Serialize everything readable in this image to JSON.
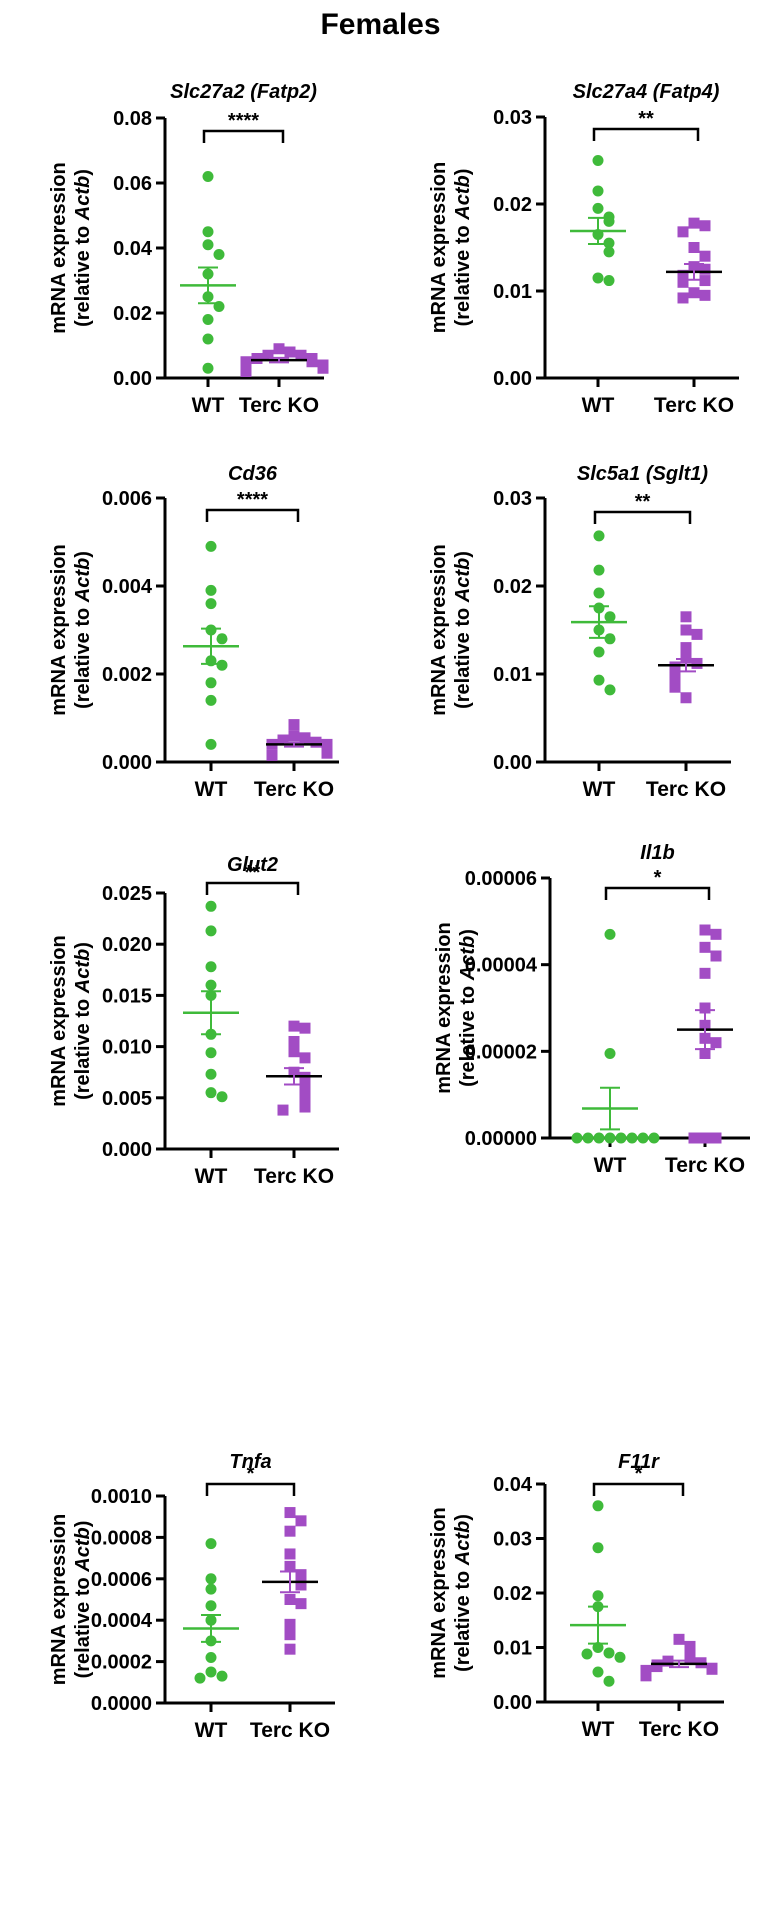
{
  "figure_title": "Females",
  "colors": {
    "wt": "#3fba3a",
    "ko": "#a24cc4",
    "axis": "#000000"
  },
  "axis_label": {
    "line1": "mRNA expression",
    "line2_prefix": "(relative to ",
    "line2_gene": "Actb",
    "line2_suffix": ")"
  },
  "chart_data": [
    {
      "type": "scatter",
      "title": "Slc27a2 (Fatp2)",
      "categories": [
        "WT",
        "Terc KO"
      ],
      "ylim": [
        0,
        0.08
      ],
      "yticks": [
        "0.00",
        "0.02",
        "0.04",
        "0.06",
        "0.08"
      ],
      "significance": "****",
      "series": [
        {
          "name": "WT",
          "marker": "circle",
          "mean": 0.0285,
          "sem": 0.0055,
          "values": [
            0.062,
            0.045,
            0.041,
            0.038,
            0.032,
            0.025,
            0.022,
            0.018,
            0.012,
            0.003
          ]
        },
        {
          "name": "Terc KO",
          "marker": "square",
          "mean": 0.0055,
          "sem": 0.0007,
          "values": [
            0.009,
            0.008,
            0.007,
            0.007,
            0.006,
            0.006,
            0.005,
            0.005,
            0.004,
            0.004,
            0.003,
            0.003,
            0.002
          ]
        }
      ]
    },
    {
      "type": "scatter",
      "title": "Slc27a4 (Fatp4)",
      "categories": [
        "WT",
        "Terc KO"
      ],
      "ylim": [
        0,
        0.03
      ],
      "yticks": [
        "0.00",
        "0.01",
        "0.02",
        "0.03"
      ],
      "significance": "**",
      "series": [
        {
          "name": "WT",
          "marker": "circle",
          "mean": 0.0169,
          "sem": 0.0015,
          "values": [
            0.025,
            0.0215,
            0.0195,
            0.0185,
            0.018,
            0.0165,
            0.0155,
            0.0145,
            0.0115,
            0.0112
          ]
        },
        {
          "name": "Terc KO",
          "marker": "square",
          "mean": 0.0122,
          "sem": 0.0009,
          "values": [
            0.0178,
            0.0175,
            0.0168,
            0.015,
            0.014,
            0.0128,
            0.0125,
            0.0118,
            0.0112,
            0.011,
            0.0098,
            0.0095,
            0.0092
          ]
        }
      ]
    },
    {
      "type": "scatter",
      "title": "Cd36",
      "categories": [
        "WT",
        "Terc KO"
      ],
      "ylim": [
        0,
        0.006
      ],
      "yticks": [
        "0.000",
        "0.002",
        "0.004",
        "0.006"
      ],
      "significance": "****",
      "series": [
        {
          "name": "WT",
          "marker": "circle",
          "mean": 0.00263,
          "sem": 0.0004,
          "values": [
            0.0049,
            0.0039,
            0.0036,
            0.003,
            0.0028,
            0.0023,
            0.0022,
            0.0018,
            0.0014,
            0.0004
          ]
        },
        {
          "name": "Terc KO",
          "marker": "square",
          "mean": 0.0004,
          "sem": 5e-05,
          "values": [
            0.00085,
            0.0006,
            0.00055,
            0.0005,
            0.00045,
            0.0004,
            0.0004,
            0.00035,
            0.0003,
            0.00025,
            0.0002,
            0.00015
          ]
        }
      ]
    },
    {
      "type": "scatter",
      "title": "Slc5a1 (Sglt1)",
      "categories": [
        "WT",
        "Terc KO"
      ],
      "ylim": [
        0,
        0.03
      ],
      "yticks": [
        "0.00",
        "0.01",
        "0.02",
        "0.03"
      ],
      "significance": "**",
      "series": [
        {
          "name": "WT",
          "marker": "circle",
          "mean": 0.0159,
          "sem": 0.0018,
          "values": [
            0.0257,
            0.0218,
            0.0192,
            0.0175,
            0.0165,
            0.015,
            0.014,
            0.0125,
            0.0093,
            0.0082
          ]
        },
        {
          "name": "Terc KO",
          "marker": "square",
          "mean": 0.011,
          "sem": 0.0007,
          "values": [
            0.0165,
            0.015,
            0.0145,
            0.013,
            0.0118,
            0.0112,
            0.0108,
            0.0105,
            0.0098,
            0.0095,
            0.009,
            0.0085,
            0.0073
          ]
        }
      ]
    },
    {
      "type": "scatter",
      "title": "Glut2",
      "categories": [
        "WT",
        "Terc KO"
      ],
      "ylim": [
        0,
        0.025
      ],
      "yticks": [
        "0.000",
        "0.005",
        "0.010",
        "0.015",
        "0.020",
        "0.025"
      ],
      "significance": "**",
      "series": [
        {
          "name": "WT",
          "marker": "circle",
          "mean": 0.0133,
          "sem": 0.0021,
          "values": [
            0.0237,
            0.0213,
            0.0178,
            0.016,
            0.015,
            0.0112,
            0.0094,
            0.0073,
            0.0055,
            0.0051
          ]
        },
        {
          "name": "Terc KO",
          "marker": "square",
          "mean": 0.0071,
          "sem": 0.0008,
          "values": [
            0.012,
            0.0118,
            0.0105,
            0.0095,
            0.0089,
            0.0075,
            0.007,
            0.0063,
            0.0055,
            0.0052,
            0.0045,
            0.0041,
            0.0038
          ]
        }
      ]
    },
    {
      "type": "scatter",
      "title": "Il1b",
      "categories": [
        "WT",
        "Terc KO"
      ],
      "ylim": [
        0,
        6e-05
      ],
      "yticks": [
        "0.00000",
        "0.00002",
        "0.00004",
        "0.00006"
      ],
      "significance": "*",
      "series": [
        {
          "name": "WT",
          "marker": "circle",
          "mean": 6.8e-06,
          "sem": 4.8e-06,
          "values": [
            4.7e-05,
            1.95e-05,
            0,
            0,
            0,
            0,
            0,
            0,
            0,
            0
          ]
        },
        {
          "name": "Terc KO",
          "marker": "square",
          "mean": 2.5e-05,
          "sem": 4.5e-06,
          "values": [
            4.8e-05,
            4.7e-05,
            4.4e-05,
            4.2e-05,
            3.8e-05,
            3e-05,
            2.6e-05,
            2.3e-05,
            2.2e-05,
            1.95e-05,
            0,
            0,
            0
          ]
        }
      ]
    },
    {
      "type": "scatter",
      "title": "Tnfa",
      "categories": [
        "WT",
        "Terc KO"
      ],
      "ylim": [
        0,
        0.001
      ],
      "yticks": [
        "0.0000",
        "0.0002",
        "0.0004",
        "0.0006",
        "0.0008",
        "0.0010"
      ],
      "significance": "*",
      "series": [
        {
          "name": "WT",
          "marker": "circle",
          "mean": 0.00036,
          "sem": 6.5e-05,
          "values": [
            0.00077,
            0.0006,
            0.00055,
            0.00047,
            0.0004,
            0.0003,
            0.00022,
            0.00015,
            0.00013,
            0.00012
          ]
        },
        {
          "name": "Terc KO",
          "marker": "square",
          "mean": 0.000585,
          "sem": 5e-05,
          "values": [
            0.00092,
            0.00088,
            0.00083,
            0.00072,
            0.00066,
            0.00062,
            0.0006,
            0.00057,
            0.0005,
            0.00048,
            0.00038,
            0.00033,
            0.00026
          ]
        }
      ]
    },
    {
      "type": "scatter",
      "title": "F11r",
      "categories": [
        "WT",
        "Terc KO"
      ],
      "ylim": [
        0,
        0.04
      ],
      "yticks": [
        "0.00",
        "0.01",
        "0.02",
        "0.03",
        "0.04"
      ],
      "significance": "*",
      "series": [
        {
          "name": "WT",
          "marker": "circle",
          "mean": 0.0141,
          "sem": 0.0034,
          "values": [
            0.036,
            0.0283,
            0.0195,
            0.0175,
            0.01,
            0.009,
            0.0088,
            0.0082,
            0.0055,
            0.0038
          ]
        },
        {
          "name": "Terc KO",
          "marker": "square",
          "mean": 0.007,
          "sem": 0.0006,
          "values": [
            0.0115,
            0.0102,
            0.0085,
            0.008,
            0.0075,
            0.0072,
            0.0068,
            0.0065,
            0.0062,
            0.006,
            0.0058,
            0.0055,
            0.0052,
            0.0048
          ]
        }
      ]
    }
  ]
}
